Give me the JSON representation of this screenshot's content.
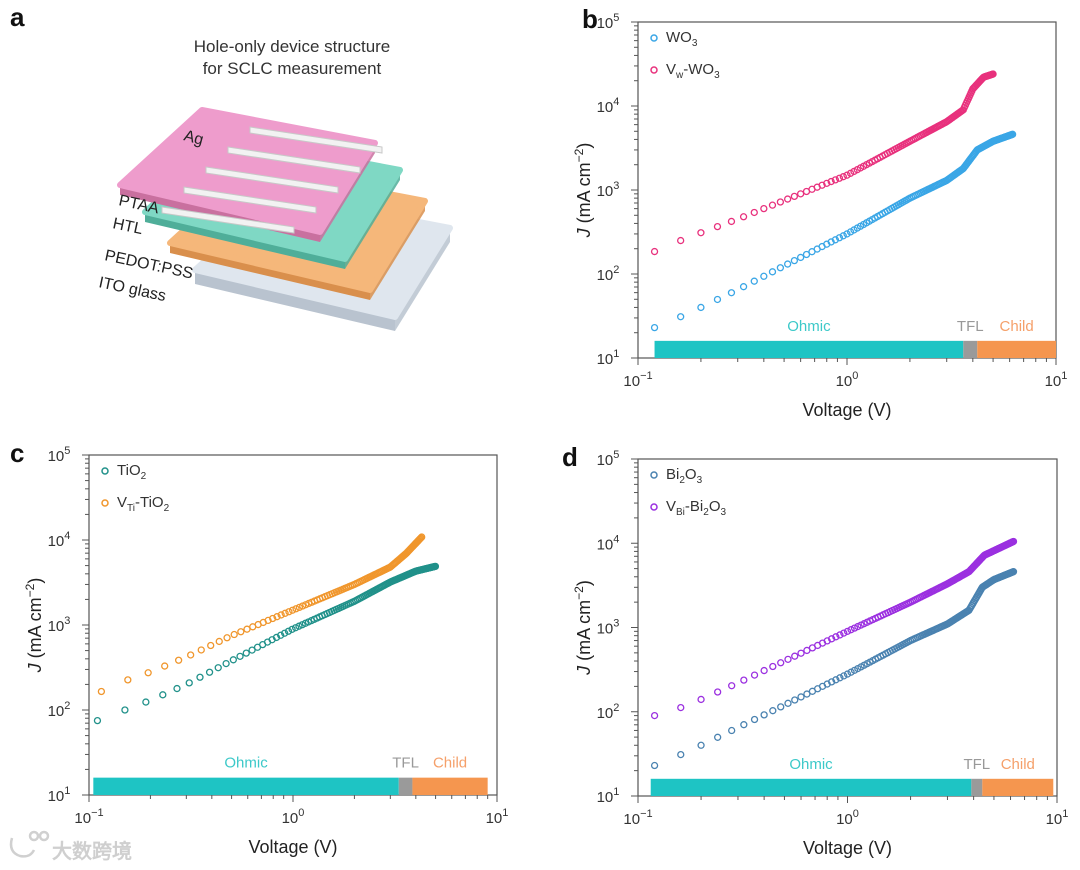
{
  "panels": {
    "a": {
      "letter": "a",
      "title_line1": "Hole-only device structure",
      "title_line2": "for SCLC measurement",
      "layers": [
        "Ag",
        "PTAA",
        "HTL",
        "PEDOT:PSS",
        "ITO glass"
      ],
      "colors": {
        "ag_top": "#ee9ccc",
        "ag_side": "#c9709f",
        "htl_top": "#7fd8c4",
        "htl_side": "#4fae99",
        "pedot_top": "#f5b77a",
        "pedot_side": "#d98f4c",
        "ito_top": "#dfe6ee",
        "ito_side": "#b9c3cf",
        "electrode": "#f2f2f2"
      }
    }
  },
  "watermark": "大数跨境",
  "chart_data": [
    {
      "id": "b",
      "letter": "b",
      "type": "scatter",
      "xlabel": "Voltage (V)",
      "ylabel_italic": "J",
      "ylabel_rest": " (mA cm",
      "ylabel_sup": "−2",
      "ylabel_end": ")",
      "xscale": "log",
      "yscale": "log",
      "xlim": [
        0.1,
        10
      ],
      "ylim": [
        10,
        100000
      ],
      "xticks": [
        {
          "base": "10",
          "exp": "−1"
        },
        {
          "base": "10",
          "exp": "0"
        },
        {
          "base": "10",
          "exp": "1"
        }
      ],
      "yticks": [
        {
          "base": "10",
          "exp": "1"
        },
        {
          "base": "10",
          "exp": "2"
        },
        {
          "base": "10",
          "exp": "3"
        },
        {
          "base": "10",
          "exp": "4"
        },
        {
          "base": "10",
          "exp": "5"
        }
      ],
      "legend_position": "top-left",
      "series": [
        {
          "name": "WO3",
          "label_parts": [
            [
              "WO",
              false
            ],
            [
              "3",
              true
            ]
          ],
          "color": "#3aa6e6",
          "points": [
            [
              0.12,
              23
            ],
            [
              0.16,
              31
            ],
            [
              0.2,
              40
            ],
            [
              0.3,
              65
            ],
            [
              0.5,
              125
            ],
            [
              1,
              300
            ],
            [
              2,
              800
            ],
            [
              3,
              1300
            ],
            [
              3.6,
              1800
            ],
            [
              4.2,
              3000
            ],
            [
              5,
              3800
            ],
            [
              6.2,
              4600
            ]
          ]
        },
        {
          "name": "Vw-WO3",
          "label_parts": [
            [
              "V",
              false
            ],
            [
              "w",
              true
            ],
            [
              "-WO",
              false
            ],
            [
              "3",
              true
            ]
          ],
          "color": "#e8317d",
          "points": [
            [
              0.12,
              185
            ],
            [
              0.16,
              250
            ],
            [
              0.2,
              310
            ],
            [
              0.3,
              450
            ],
            [
              0.5,
              750
            ],
            [
              1,
              1500
            ],
            [
              2,
              3800
            ],
            [
              3,
              6500
            ],
            [
              3.6,
              9000
            ],
            [
              4,
              16000
            ],
            [
              4.5,
              22000
            ],
            [
              5,
              24000
            ]
          ]
        }
      ],
      "regions": [
        {
          "label": "Ohmic",
          "from": 0.12,
          "to": 3.6,
          "color": "#1ec4c4"
        },
        {
          "label": "TFL",
          "from": 3.6,
          "to": 4.2,
          "color": "#9a9a9a"
        },
        {
          "label": "Child",
          "from": 4.2,
          "to": 10,
          "color": "#f5964f"
        }
      ]
    },
    {
      "id": "c",
      "letter": "c",
      "type": "scatter",
      "xlabel": "Voltage (V)",
      "ylabel_italic": "J",
      "ylabel_rest": " (mA cm",
      "ylabel_sup": "−2",
      "ylabel_end": ")",
      "xscale": "log",
      "yscale": "log",
      "xlim": [
        0.1,
        10
      ],
      "ylim": [
        10,
        100000
      ],
      "xticks": [
        {
          "base": "10",
          "exp": "−1"
        },
        {
          "base": "10",
          "exp": "0"
        },
        {
          "base": "10",
          "exp": "1"
        }
      ],
      "yticks": [
        {
          "base": "10",
          "exp": "1"
        },
        {
          "base": "10",
          "exp": "2"
        },
        {
          "base": "10",
          "exp": "3"
        },
        {
          "base": "10",
          "exp": "4"
        },
        {
          "base": "10",
          "exp": "5"
        }
      ],
      "legend_position": "top-left",
      "series": [
        {
          "name": "TiO2",
          "label_parts": [
            [
              "TiO",
              false
            ],
            [
              "2",
              true
            ]
          ],
          "color": "#21918a",
          "points": [
            [
              0.11,
              75
            ],
            [
              0.15,
              100
            ],
            [
              0.2,
              130
            ],
            [
              0.3,
              200
            ],
            [
              0.5,
              380
            ],
            [
              1,
              900
            ],
            [
              2,
              1900
            ],
            [
              3,
              3200
            ],
            [
              4,
              4300
            ],
            [
              5,
              4900
            ]
          ]
        },
        {
          "name": "VTi-TiO2",
          "label_parts": [
            [
              "V",
              false
            ],
            [
              "Ti",
              true
            ],
            [
              "-TiO",
              false
            ],
            [
              "2",
              true
            ]
          ],
          "color": "#f0962c",
          "points": [
            [
              0.115,
              165
            ],
            [
              0.15,
              220
            ],
            [
              0.2,
              280
            ],
            [
              0.3,
              420
            ],
            [
              0.5,
              750
            ],
            [
              1,
              1500
            ],
            [
              2,
              3000
            ],
            [
              3,
              4800
            ],
            [
              3.6,
              7000
            ],
            [
              4.3,
              11000
            ]
          ]
        }
      ],
      "regions": [
        {
          "label": "Ohmic",
          "from": 0.105,
          "to": 3.3,
          "color": "#1ec4c4"
        },
        {
          "label": "TFL",
          "from": 3.3,
          "to": 3.85,
          "color": "#9a9a9a"
        },
        {
          "label": "Child",
          "from": 3.85,
          "to": 9.0,
          "color": "#f5964f"
        }
      ]
    },
    {
      "id": "d",
      "letter": "d",
      "type": "scatter",
      "xlabel": "Voltage (V)",
      "ylabel_italic": "J",
      "ylabel_rest": " (mA cm",
      "ylabel_sup": "−2",
      "ylabel_end": ")",
      "xscale": "log",
      "yscale": "log",
      "xlim": [
        0.1,
        10
      ],
      "ylim": [
        10,
        100000
      ],
      "xticks": [
        {
          "base": "10",
          "exp": "−1"
        },
        {
          "base": "10",
          "exp": "0"
        },
        {
          "base": "10",
          "exp": "1"
        }
      ],
      "yticks": [
        {
          "base": "10",
          "exp": "1"
        },
        {
          "base": "10",
          "exp": "2"
        },
        {
          "base": "10",
          "exp": "3"
        },
        {
          "base": "10",
          "exp": "4"
        },
        {
          "base": "10",
          "exp": "5"
        }
      ],
      "legend_position": "top-left",
      "series": [
        {
          "name": "Bi2O3",
          "label_parts": [
            [
              "Bi",
              false
            ],
            [
              "2",
              true
            ],
            [
              "O",
              false
            ],
            [
              "3",
              true
            ]
          ],
          "color": "#4a82b0",
          "points": [
            [
              0.12,
              23
            ],
            [
              0.16,
              31
            ],
            [
              0.2,
              40
            ],
            [
              0.3,
              65
            ],
            [
              0.5,
              120
            ],
            [
              1,
              280
            ],
            [
              2,
              700
            ],
            [
              3,
              1100
            ],
            [
              3.8,
              1600
            ],
            [
              4.4,
              3000
            ],
            [
              5,
              3700
            ],
            [
              6.2,
              4600
            ]
          ]
        },
        {
          "name": "VBi-Bi2O3",
          "label_parts": [
            [
              "V",
              false
            ],
            [
              "Bi",
              true
            ],
            [
              "-Bi",
              false
            ],
            [
              "2",
              true
            ],
            [
              "O",
              false
            ],
            [
              "3",
              true
            ]
          ],
          "color": "#9b30e0",
          "points": [
            [
              0.12,
              90
            ],
            [
              0.16,
              112
            ],
            [
              0.2,
              140
            ],
            [
              0.3,
              220
            ],
            [
              0.5,
              400
            ],
            [
              1,
              900
            ],
            [
              2,
              2000
            ],
            [
              3,
              3300
            ],
            [
              3.8,
              4600
            ],
            [
              4.5,
              7200
            ],
            [
              6.2,
              10500
            ]
          ]
        }
      ],
      "regions": [
        {
          "label": "Ohmic",
          "from": 0.115,
          "to": 3.9,
          "color": "#1ec4c4"
        },
        {
          "label": "TFL",
          "from": 3.9,
          "to": 4.4,
          "color": "#9a9a9a"
        },
        {
          "label": "Child",
          "from": 4.4,
          "to": 9.6,
          "color": "#f5964f"
        }
      ]
    }
  ]
}
